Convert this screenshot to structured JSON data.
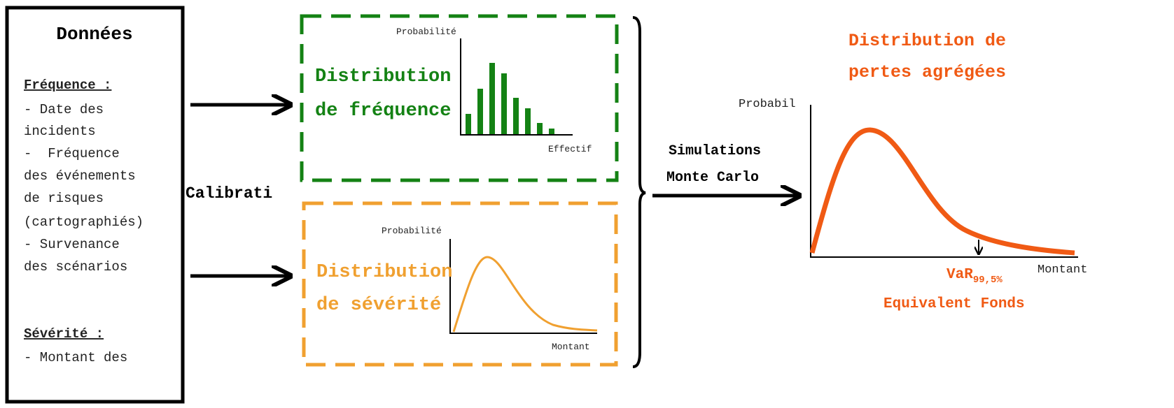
{
  "data_panel": {
    "title": "Données",
    "frequency": {
      "heading": "Fréquence :",
      "lines": [
        "- Date des",
        "incidents",
        "-  Fréquence",
        "des événements",
        "de risques",
        "(cartographiés)",
        "- Survenance",
        "des scénarios"
      ]
    },
    "severity": {
      "heading": "Sévérité :",
      "lines": [
        "- Montant des"
      ]
    }
  },
  "calibration_label": "Calibrati",
  "frequency_panel": {
    "title_lines": [
      "Distribution",
      "de fréquence"
    ],
    "y_label": "Probabilité",
    "x_label": "Effectif"
  },
  "severity_panel": {
    "title_lines": [
      "Distribution",
      "de sévérité"
    ],
    "y_label": "Probabilité",
    "x_label": "Montant"
  },
  "simulation_label_lines": [
    "Simulations",
    "Monte Carlo"
  ],
  "result_panel": {
    "title_lines": [
      "Distribution de",
      "pertes agrégées"
    ],
    "y_label": "Probabil",
    "x_label": "Montant",
    "var_label": "VaR",
    "var_subscript": "99,5%",
    "var_caption": "Equivalent Fonds"
  }
}
